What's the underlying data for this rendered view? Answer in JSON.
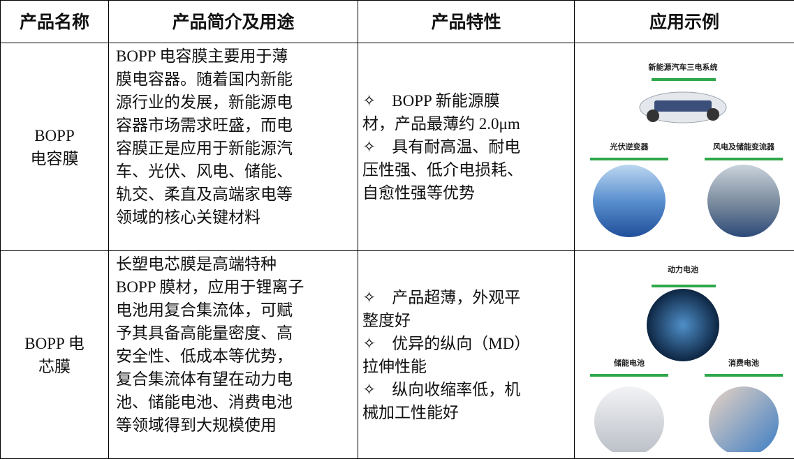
{
  "table": {
    "header": [
      "产品名称",
      "产品简介及用途",
      "产品特性",
      "应用示例"
    ],
    "rows": [
      {
        "name": [
          "BOPP",
          "电容膜"
        ],
        "intro": [
          "BOPP 电容膜主要用于薄",
          "膜电容器。随着国内新能",
          "源行业的发展，新能源电",
          "容器市场需求旺盛，而电",
          "容膜正是应用于新能源汽",
          "车、光伏、风电、储能、",
          "轨交、柔直及高端家电等",
          "领域的核心关键材料"
        ],
        "features": [
          "✧　BOPP 新能源膜",
          "材，产品最薄约 2.0μm",
          "✧　具有耐高温、耐电",
          "压性强、低介电损耗、",
          "自愈性强等优势"
        ],
        "examples": {
          "top": "新能源汽车三电系统",
          "left": "光伏逆变器",
          "right": "风电及储能变流器"
        }
      },
      {
        "name": [
          "BOPP 电",
          "芯膜"
        ],
        "intro": [
          "长塑电芯膜是高端特种",
          "BOPP 膜材，应用于锂离子",
          "电池用复合集流体，可赋",
          "予其具备高能量密度、高",
          "安全性、低成本等优势，",
          "复合集流体有望在动力电",
          "池、储能电池、消费电池",
          "等领域得到大规模使用"
        ],
        "features": [
          "✧　产品超薄，外观平",
          "整度好",
          "✧　优异的纵向（MD）",
          "拉伸性能",
          "✧　纵向收缩率低，机",
          "械加工性能好"
        ],
        "examples": {
          "top": "动力电池",
          "left": "储能电池",
          "right": "消费电池"
        }
      }
    ]
  }
}
